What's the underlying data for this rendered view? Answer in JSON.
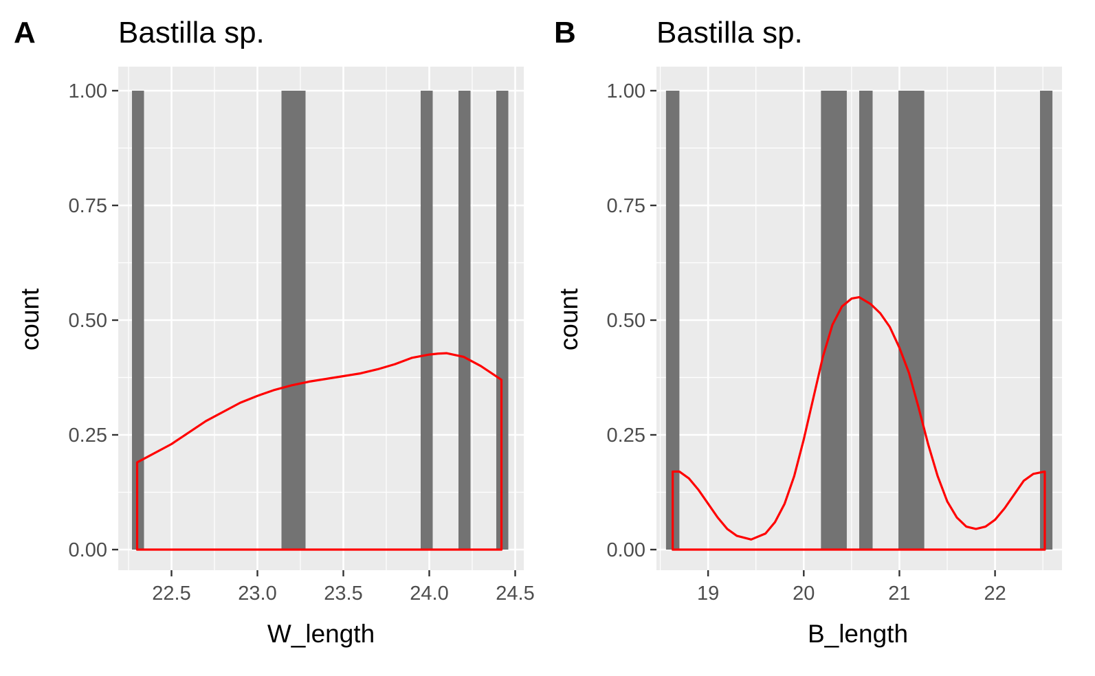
{
  "chart_data": [
    {
      "panel": "A",
      "type": "bar",
      "title": "Bastilla sp.",
      "xlabel": "W_length",
      "ylabel": "count",
      "xlim": [
        22.27,
        24.46
      ],
      "ylim": [
        0,
        1
      ],
      "x_ticks": [
        "22.5",
        "23.0",
        "23.5",
        "24.0",
        "24.5"
      ],
      "x_tick_values": [
        22.5,
        23.0,
        23.5,
        24.0,
        24.5
      ],
      "y_ticks": [
        "0.00",
        "0.25",
        "0.50",
        "0.75",
        "1.00"
      ],
      "y_tick_values": [
        0,
        0.25,
        0.5,
        0.75,
        1.0
      ],
      "grid": true,
      "bars": [
        {
          "x0": 22.27,
          "x1": 22.34,
          "count": 1
        },
        {
          "x0": 23.14,
          "x1": 23.28,
          "count": 1
        },
        {
          "x0": 23.95,
          "x1": 24.02,
          "count": 1
        },
        {
          "x0": 24.17,
          "x1": 24.24,
          "count": 1
        },
        {
          "x0": 24.39,
          "x1": 24.46,
          "count": 1
        }
      ],
      "density_color": "#ff0000",
      "bar_color": "#737373",
      "density_curve": {
        "x": [
          22.3,
          22.5,
          22.7,
          22.9,
          23.0,
          23.1,
          23.2,
          23.3,
          23.4,
          23.5,
          23.6,
          23.7,
          23.8,
          23.9,
          24.0,
          24.05,
          24.1,
          24.2,
          24.3,
          24.42
        ],
        "y": [
          0.19,
          0.23,
          0.28,
          0.32,
          0.335,
          0.348,
          0.358,
          0.366,
          0.372,
          0.378,
          0.384,
          0.393,
          0.404,
          0.418,
          0.425,
          0.427,
          0.428,
          0.42,
          0.4,
          0.37
        ]
      }
    },
    {
      "panel": "B",
      "type": "bar",
      "title": "Bastilla sp.",
      "xlabel": "B_length",
      "ylabel": "count",
      "xlim": [
        18.56,
        22.6
      ],
      "ylim": [
        0,
        1
      ],
      "x_ticks": [
        "19",
        "20",
        "21",
        "22"
      ],
      "x_tick_values": [
        19,
        20,
        21,
        22
      ],
      "y_ticks": [
        "0.00",
        "0.25",
        "0.50",
        "0.75",
        "1.00"
      ],
      "y_tick_values": [
        0,
        0.25,
        0.5,
        0.75,
        1.0
      ],
      "grid": true,
      "bars": [
        {
          "x0": 18.56,
          "x1": 18.7,
          "count": 1
        },
        {
          "x0": 20.18,
          "x1": 20.45,
          "count": 1
        },
        {
          "x0": 20.58,
          "x1": 20.72,
          "count": 1
        },
        {
          "x0": 20.99,
          "x1": 21.26,
          "count": 1
        },
        {
          "x0": 22.47,
          "x1": 22.6,
          "count": 1
        }
      ],
      "density_color": "#ff0000",
      "bar_color": "#737373",
      "density_curve": {
        "x": [
          18.63,
          18.7,
          18.8,
          18.9,
          19.0,
          19.1,
          19.2,
          19.3,
          19.45,
          19.6,
          19.7,
          19.8,
          19.9,
          20.0,
          20.1,
          20.2,
          20.3,
          20.4,
          20.5,
          20.58,
          20.7,
          20.8,
          20.9,
          21.0,
          21.1,
          21.2,
          21.3,
          21.4,
          21.5,
          21.6,
          21.7,
          21.8,
          21.9,
          22.0,
          22.1,
          22.2,
          22.3,
          22.4,
          22.52
        ],
        "y": [
          0.17,
          0.17,
          0.155,
          0.13,
          0.1,
          0.07,
          0.045,
          0.03,
          0.022,
          0.035,
          0.06,
          0.1,
          0.16,
          0.24,
          0.33,
          0.42,
          0.49,
          0.53,
          0.547,
          0.55,
          0.535,
          0.515,
          0.485,
          0.44,
          0.385,
          0.31,
          0.23,
          0.16,
          0.105,
          0.07,
          0.05,
          0.045,
          0.05,
          0.065,
          0.09,
          0.12,
          0.15,
          0.165,
          0.17
        ]
      }
    }
  ]
}
